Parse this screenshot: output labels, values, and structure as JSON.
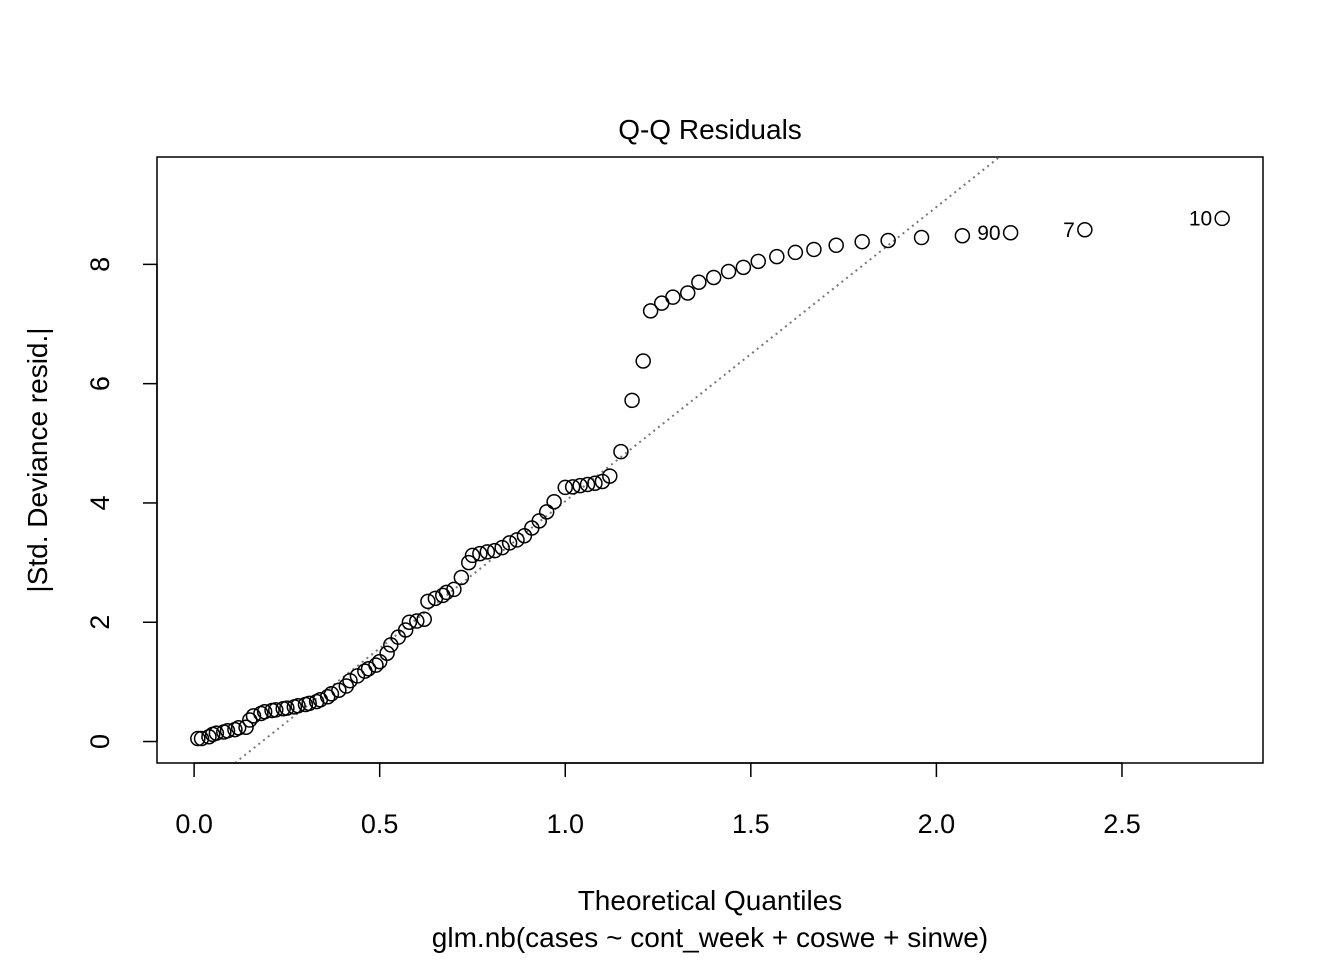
{
  "chart_data": {
    "type": "scatter",
    "title": "Q-Q Residuals",
    "xlabel": "Theoretical Quantiles",
    "subtitle": "glm.nb(cases ~ cont_week + coswe + sinwe)",
    "ylabel": "|Std. Deviance resid.|",
    "xlim": [
      -0.1,
      2.88
    ],
    "ylim": [
      -0.36,
      9.8
    ],
    "xticks": [
      0.0,
      0.5,
      1.0,
      1.5,
      2.0,
      2.5
    ],
    "xtick_labels": [
      "0.0",
      "0.5",
      "1.0",
      "1.5",
      "2.0",
      "2.5"
    ],
    "yticks": [
      0,
      2,
      4,
      6,
      8
    ],
    "ytick_labels": [
      "0",
      "2",
      "4",
      "6",
      "8"
    ],
    "grid": false,
    "reference_line": {
      "style": "dotted",
      "color": "#777777",
      "points": [
        [
          0.11,
          -0.36
        ],
        [
          2.17,
          9.8
        ]
      ]
    },
    "points": [
      [
        0.01,
        0.05
      ],
      [
        0.02,
        0.05
      ],
      [
        0.04,
        0.08
      ],
      [
        0.05,
        0.12
      ],
      [
        0.06,
        0.14
      ],
      [
        0.08,
        0.16
      ],
      [
        0.09,
        0.18
      ],
      [
        0.11,
        0.2
      ],
      [
        0.12,
        0.23
      ],
      [
        0.14,
        0.24
      ],
      [
        0.15,
        0.36
      ],
      [
        0.16,
        0.43
      ],
      [
        0.18,
        0.47
      ],
      [
        0.19,
        0.5
      ],
      [
        0.21,
        0.52
      ],
      [
        0.22,
        0.53
      ],
      [
        0.24,
        0.55
      ],
      [
        0.25,
        0.56
      ],
      [
        0.27,
        0.58
      ],
      [
        0.28,
        0.6
      ],
      [
        0.3,
        0.62
      ],
      [
        0.31,
        0.64
      ],
      [
        0.33,
        0.67
      ],
      [
        0.34,
        0.7
      ],
      [
        0.36,
        0.75
      ],
      [
        0.37,
        0.8
      ],
      [
        0.39,
        0.86
      ],
      [
        0.41,
        0.93
      ],
      [
        0.42,
        1.02
      ],
      [
        0.44,
        1.1
      ],
      [
        0.46,
        1.18
      ],
      [
        0.47,
        1.22
      ],
      [
        0.49,
        1.28
      ],
      [
        0.5,
        1.34
      ],
      [
        0.52,
        1.48
      ],
      [
        0.53,
        1.62
      ],
      [
        0.55,
        1.75
      ],
      [
        0.57,
        1.87
      ],
      [
        0.58,
        2.0
      ],
      [
        0.6,
        2.02
      ],
      [
        0.62,
        2.05
      ],
      [
        0.63,
        2.35
      ],
      [
        0.65,
        2.4
      ],
      [
        0.67,
        2.45
      ],
      [
        0.68,
        2.5
      ],
      [
        0.7,
        2.55
      ],
      [
        0.72,
        2.75
      ],
      [
        0.74,
        3.0
      ],
      [
        0.75,
        3.12
      ],
      [
        0.77,
        3.15
      ],
      [
        0.79,
        3.18
      ],
      [
        0.81,
        3.2
      ],
      [
        0.83,
        3.25
      ],
      [
        0.85,
        3.33
      ],
      [
        0.87,
        3.38
      ],
      [
        0.89,
        3.45
      ],
      [
        0.91,
        3.58
      ],
      [
        0.93,
        3.7
      ],
      [
        0.95,
        3.85
      ],
      [
        0.97,
        4.02
      ],
      [
        1.0,
        4.26
      ],
      [
        1.02,
        4.27
      ],
      [
        1.04,
        4.29
      ],
      [
        1.06,
        4.31
      ],
      [
        1.08,
        4.33
      ],
      [
        1.1,
        4.36
      ],
      [
        1.12,
        4.45
      ],
      [
        1.15,
        4.86
      ],
      [
        1.18,
        5.72
      ],
      [
        1.21,
        6.38
      ],
      [
        1.23,
        7.22
      ],
      [
        1.26,
        7.35
      ],
      [
        1.29,
        7.45
      ],
      [
        1.33,
        7.52
      ],
      [
        1.36,
        7.7
      ],
      [
        1.4,
        7.78
      ],
      [
        1.44,
        7.88
      ],
      [
        1.48,
        7.95
      ],
      [
        1.52,
        8.05
      ],
      [
        1.57,
        8.13
      ],
      [
        1.62,
        8.2
      ],
      [
        1.67,
        8.25
      ],
      [
        1.73,
        8.32
      ],
      [
        1.8,
        8.38
      ],
      [
        1.87,
        8.4
      ],
      [
        1.96,
        8.45
      ],
      [
        2.07,
        8.48
      ],
      [
        2.2,
        8.53
      ],
      [
        2.4,
        8.58
      ],
      [
        2.77,
        8.77
      ]
    ],
    "annotations": [
      {
        "label": "90",
        "x": 2.2,
        "y": 8.53
      },
      {
        "label": "7",
        "x": 2.4,
        "y": 8.58
      },
      {
        "label": "10",
        "x": 2.77,
        "y": 8.77
      }
    ]
  }
}
